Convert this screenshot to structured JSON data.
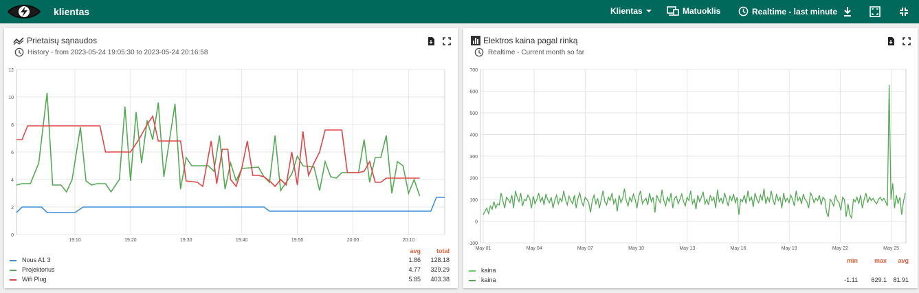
{
  "header": {
    "brand": "klientas",
    "client_menu": "Klientas",
    "meter_label": "Matuoklis",
    "realtime_label": "Realtime - last minute",
    "icons": [
      "eye-logo-icon",
      "chevron-down-icon",
      "meter-icon",
      "clock-icon",
      "download-icon",
      "fullscreen-frame-icon",
      "collapse-icon"
    ]
  },
  "colors": {
    "accent": "#00695c",
    "blue": "#3c8fdd",
    "green": "#55aa55",
    "red": "#e04646",
    "legend_header": "#e8603c"
  },
  "card1": {
    "title": "Prietaisų sąnaudos",
    "subtitle": "History - from 2023-05-24 19:05:30 to 2023-05-24 20:16:58",
    "legend_headers": [
      "avg",
      "total"
    ],
    "legend": [
      {
        "name": "Nous A1 3",
        "avg": "1.86",
        "total": "128.18"
      },
      {
        "name": "Projektorius",
        "avg": "4.77",
        "total": "329.29"
      },
      {
        "name": "Wifi Plug",
        "avg": "5.85",
        "total": "403.38"
      }
    ]
  },
  "card2": {
    "title": "Elektros kaina pagal rinką",
    "subtitle": "Realtime - Current month so far",
    "legend_headers": [
      "min",
      "max",
      "avg"
    ],
    "legend": [
      {
        "name": "kaina",
        "min": "",
        "max": "",
        "avg": ""
      },
      {
        "name": "kaina",
        "min": "-1.11",
        "max": "629.1",
        "avg": "81.91"
      }
    ]
  },
  "chart_data": [
    {
      "type": "line",
      "x_ticks": [
        "19:10",
        "19:20",
        "19:30",
        "19:40",
        "19:50",
        "20:00",
        "20:10"
      ],
      "y_ticks": [
        "0",
        "2",
        "4",
        "6",
        "8",
        "10",
        "12"
      ],
      "ylim": [
        0,
        12
      ],
      "grid": true,
      "x_minutes": [
        -5.5,
        71.5
      ],
      "series": [
        {
          "name": "Nous A1 3",
          "color": "#3c8fdd",
          "points": [
            [
              -5.5,
              1.6
            ],
            [
              -4.5,
              2.0
            ],
            [
              -1,
              2.0
            ],
            [
              0,
              1.6
            ],
            [
              5,
              1.6
            ],
            [
              6.5,
              2.0
            ],
            [
              20,
              2.0
            ],
            [
              30,
              2.0
            ],
            [
              39,
              2.0
            ],
            [
              40,
              1.7
            ],
            [
              50,
              1.7
            ],
            [
              60,
              1.7
            ],
            [
              69,
              1.7
            ],
            [
              70,
              2.7
            ],
            [
              71.5,
              2.7
            ]
          ]
        },
        {
          "name": "Projektorius",
          "color": "#55aa55",
          "points": [
            [
              -5.5,
              3.6
            ],
            [
              -4.5,
              3.7
            ],
            [
              -3,
              3.7
            ],
            [
              -1.5,
              5.2
            ],
            [
              0,
              10.3
            ],
            [
              1,
              3.6
            ],
            [
              2.5,
              3.6
            ],
            [
              3.5,
              3.1
            ],
            [
              4.5,
              4.0
            ],
            [
              6,
              7.8
            ],
            [
              7,
              3.9
            ],
            [
              8,
              3.6
            ],
            [
              9,
              3.7
            ],
            [
              10.5,
              3.7
            ],
            [
              11.5,
              3.1
            ],
            [
              13,
              4.0
            ],
            [
              14,
              9.3
            ],
            [
              15,
              3.9
            ],
            [
              16,
              8.9
            ],
            [
              17,
              5.2
            ],
            [
              18,
              8.3
            ],
            [
              19,
              6.9
            ],
            [
              20,
              9.6
            ],
            [
              21,
              4.2
            ],
            [
              23,
              9.5
            ],
            [
              24,
              3.3
            ],
            [
              25,
              5.6
            ],
            [
              26,
              5.0
            ],
            [
              29,
              5.0
            ],
            [
              30,
              4.6
            ],
            [
              31,
              7.2
            ],
            [
              32,
              3.3
            ],
            [
              33,
              5.2
            ],
            [
              34,
              3.9
            ],
            [
              35,
              4.8
            ],
            [
              38,
              4.9
            ],
            [
              39,
              4.2
            ],
            [
              40,
              3.8
            ],
            [
              41,
              7.2
            ],
            [
              42,
              3.2
            ],
            [
              44,
              4.4
            ],
            [
              45,
              5.7
            ],
            [
              46,
              5.0
            ],
            [
              48,
              4.9
            ],
            [
              49,
              3.2
            ],
            [
              50,
              5.3
            ],
            [
              51,
              4.2
            ],
            [
              52,
              4.1
            ],
            [
              53,
              4.5
            ],
            [
              56,
              4.5
            ],
            [
              57,
              6.9
            ],
            [
              58,
              3.8
            ],
            [
              59,
              5.6
            ],
            [
              60,
              5.6
            ],
            [
              61,
              7.2
            ],
            [
              62,
              3.0
            ],
            [
              63,
              5.3
            ],
            [
              64,
              5.0
            ],
            [
              65,
              3.0
            ],
            [
              66,
              4.0
            ],
            [
              67,
              2.8
            ]
          ]
        },
        {
          "name": "Wifi Plug",
          "color": "#e04646",
          "points": [
            [
              -5.5,
              6.9
            ],
            [
              -4.5,
              6.9
            ],
            [
              -3.5,
              7.9
            ],
            [
              4,
              7.9
            ],
            [
              9.5,
              7.9
            ],
            [
              10.5,
              6.0
            ],
            [
              14,
              6.0
            ],
            [
              15,
              6.0
            ],
            [
              16.5,
              6.9
            ],
            [
              18,
              8.0
            ],
            [
              19,
              8.6
            ],
            [
              20,
              6.8
            ],
            [
              24,
              6.8
            ],
            [
              25,
              3.9
            ],
            [
              27,
              3.8
            ],
            [
              28,
              3.5
            ],
            [
              29.5,
              6.8
            ],
            [
              30.5,
              3.7
            ],
            [
              31.5,
              6.2
            ],
            [
              32.5,
              6.2
            ],
            [
              33,
              4.0
            ],
            [
              34,
              3.5
            ],
            [
              35,
              4.8
            ],
            [
              36,
              6.8
            ],
            [
              37,
              4.3
            ],
            [
              38,
              4.3
            ],
            [
              39,
              4.2
            ],
            [
              40,
              3.9
            ],
            [
              41,
              3.5
            ],
            [
              42,
              4.0
            ],
            [
              43,
              3.6
            ],
            [
              44,
              6.0
            ],
            [
              45,
              3.6
            ],
            [
              46,
              7.5
            ],
            [
              47,
              4.3
            ],
            [
              48,
              5.2
            ],
            [
              49,
              6.0
            ],
            [
              50,
              7.6
            ],
            [
              53,
              7.6
            ],
            [
              54,
              4.5
            ],
            [
              56,
              4.5
            ],
            [
              57,
              4.6
            ],
            [
              58,
              5.3
            ],
            [
              59,
              3.8
            ],
            [
              60,
              3.8
            ],
            [
              61,
              4.1
            ],
            [
              67,
              4.1
            ]
          ]
        }
      ]
    },
    {
      "type": "line",
      "x_ticks": [
        "May 01",
        "May 04",
        "May 07",
        "May 10",
        "May 13",
        "May 16",
        "May 19",
        "May 22",
        "May 25"
      ],
      "y_ticks": [
        "-100",
        "0",
        "100",
        "200",
        "300",
        "400",
        "500",
        "600",
        "700"
      ],
      "ylim": [
        -100,
        700
      ],
      "grid": true,
      "series": [
        {
          "name": "kaina",
          "color": "#55aa55",
          "values": [
            30,
            45,
            60,
            35,
            70,
            55,
            90,
            60,
            80,
            75,
            130,
            95,
            60,
            110,
            100,
            85,
            120,
            60,
            140,
            110,
            90,
            130,
            70,
            100,
            95,
            120,
            105,
            60,
            115,
            80,
            100,
            130,
            90,
            110,
            75,
            125,
            100,
            85,
            110,
            60,
            95,
            120,
            80,
            105,
            90,
            140,
            100,
            75,
            115,
            95,
            80,
            120,
            60,
            105,
            130,
            90,
            70,
            110,
            100,
            85,
            40,
            95,
            120,
            80,
            105,
            60,
            100,
            140,
            90,
            75,
            110,
            95,
            130,
            80,
            100,
            45,
            120,
            85,
            105,
            150,
            95,
            70,
            110,
            90,
            125,
            100,
            60,
            115,
            140,
            80,
            95,
            105,
            75,
            130,
            90,
            110,
            40,
            120,
            100,
            85,
            145,
            95,
            70,
            110,
            90,
            130,
            60,
            105,
            115,
            80,
            100,
            125,
            90,
            70,
            110,
            95,
            140,
            80,
            100,
            55,
            120,
            90,
            110,
            135,
            80,
            100,
            75,
            120,
            95,
            110,
            60,
            145,
            90,
            105,
            80,
            130,
            100,
            70,
            115,
            95,
            125,
            85,
            110,
            30,
            100,
            90,
            120,
            80,
            140,
            95,
            110,
            65,
            130,
            100,
            85,
            120,
            95,
            150,
            80,
            110,
            90,
            140,
            100,
            75,
            125,
            95,
            110,
            60,
            130,
            90,
            105,
            85,
            120,
            100,
            70,
            140,
            95,
            110,
            80,
            125,
            100,
            90,
            60,
            130,
            115,
            85,
            105,
            95,
            120,
            75,
            110,
            100,
            40,
            20,
            100,
            90,
            70,
            120,
            95,
            85,
            50,
            110,
            100,
            20,
            80,
            30,
            15,
            100,
            90,
            110,
            80,
            120,
            60,
            100,
            130,
            85,
            110,
            95,
            105,
            90,
            80,
            100,
            110,
            95,
            105,
            90,
            70,
            629,
            100,
            175,
            60,
            120,
            80,
            110,
            30,
            90,
            130
          ]
        }
      ]
    }
  ]
}
